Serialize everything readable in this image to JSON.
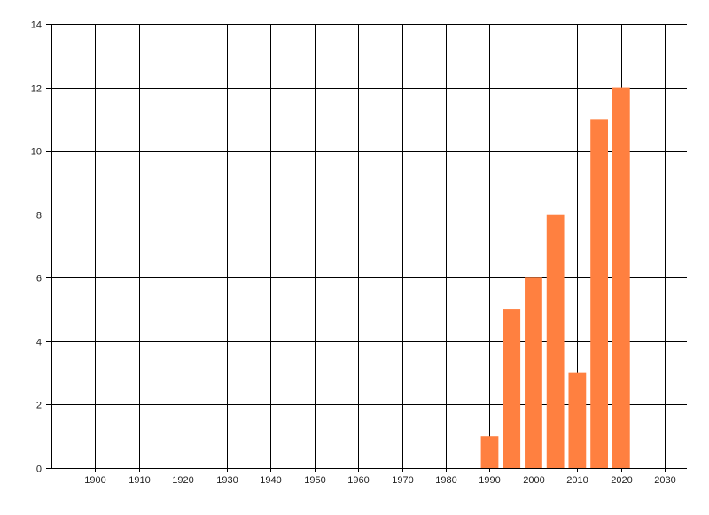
{
  "chart_data": {
    "type": "bar",
    "title": "",
    "xlabel": "",
    "ylabel": "",
    "x": [
      1990,
      1995,
      2000,
      2005,
      2010,
      2015,
      2020
    ],
    "values": [
      1,
      5,
      6,
      8,
      3,
      11,
      12
    ],
    "bar_width_years": 4,
    "xlim": [
      1890,
      2035
    ],
    "ylim": [
      0,
      14
    ],
    "xticks": [
      1900,
      1910,
      1920,
      1930,
      1940,
      1950,
      1960,
      1970,
      1980,
      1990,
      2000,
      2010,
      2020,
      2030
    ],
    "yticks": [
      0,
      2,
      4,
      6,
      8,
      10,
      12,
      14
    ],
    "grid": true,
    "bar_color": "#FF8040",
    "grid_color": "#000000"
  }
}
